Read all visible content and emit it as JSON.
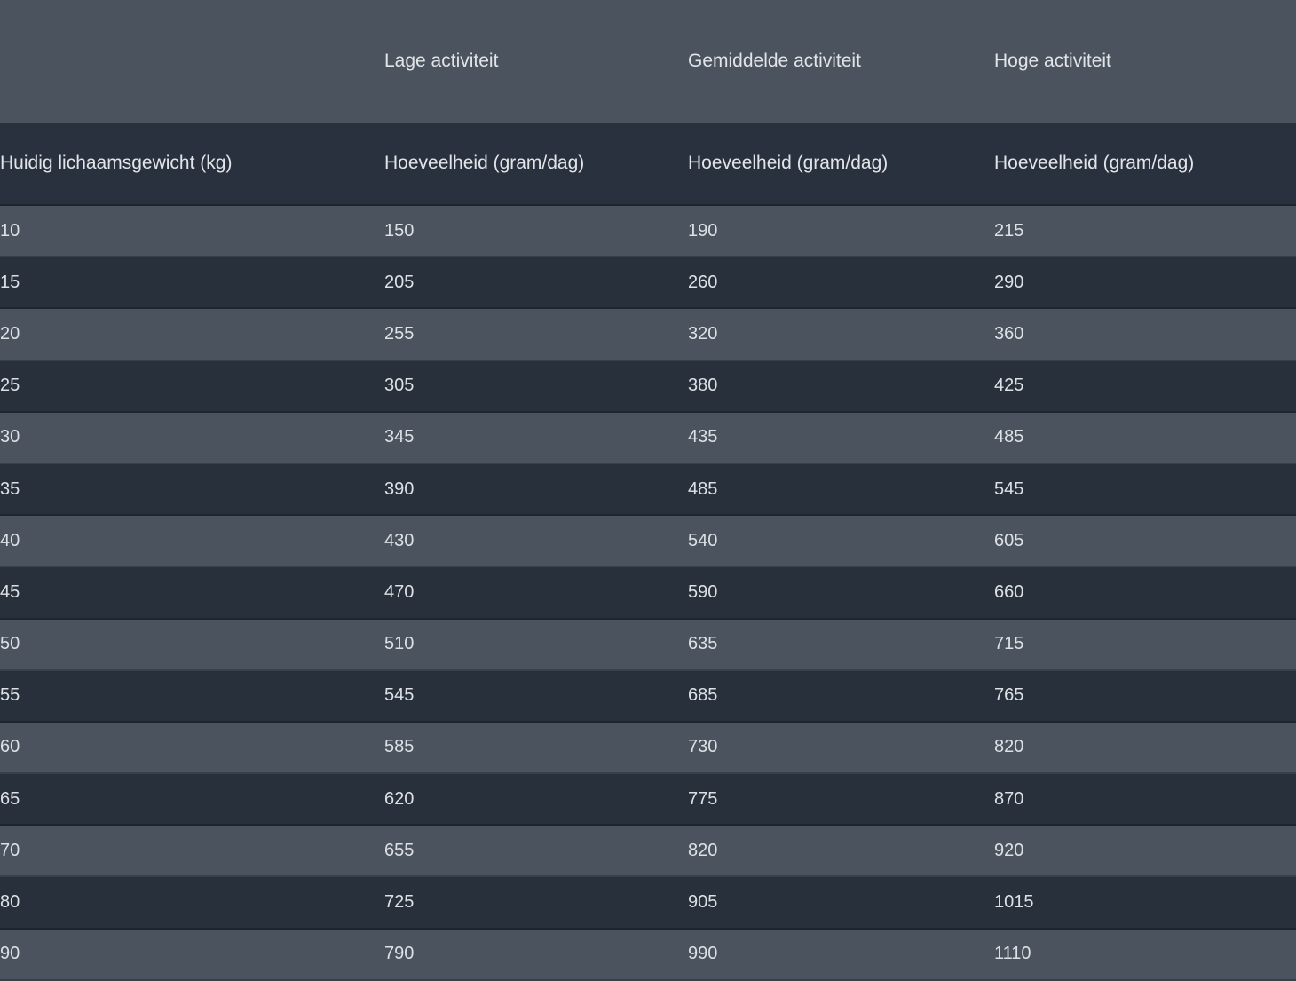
{
  "table": {
    "top_headers": {
      "low": "Lage activiteit",
      "medium": "Gemiddelde activiteit",
      "high": "Hoge activiteit"
    },
    "column_headers": {
      "weight": "Huidig lichaamsgewicht (kg)",
      "low": "Hoeveelheid (gram/dag)",
      "medium": "Hoeveelheid (gram/dag)",
      "high": "Hoeveelheid (gram/dag)"
    },
    "rows": [
      [
        10,
        150,
        190,
        215
      ],
      [
        15,
        205,
        260,
        290
      ],
      [
        20,
        255,
        320,
        360
      ],
      [
        25,
        305,
        380,
        425
      ],
      [
        30,
        345,
        435,
        485
      ],
      [
        35,
        390,
        485,
        545
      ],
      [
        40,
        430,
        540,
        605
      ],
      [
        45,
        470,
        590,
        660
      ],
      [
        50,
        510,
        635,
        715
      ],
      [
        55,
        545,
        685,
        765
      ],
      [
        60,
        585,
        730,
        820
      ],
      [
        65,
        620,
        775,
        870
      ],
      [
        70,
        655,
        820,
        920
      ],
      [
        80,
        725,
        905,
        1015
      ],
      [
        90,
        790,
        990,
        1110
      ]
    ],
    "colors": {
      "row_light": "#4a535e",
      "row_dark": "#28303c",
      "text": "#e2e5e8"
    }
  }
}
